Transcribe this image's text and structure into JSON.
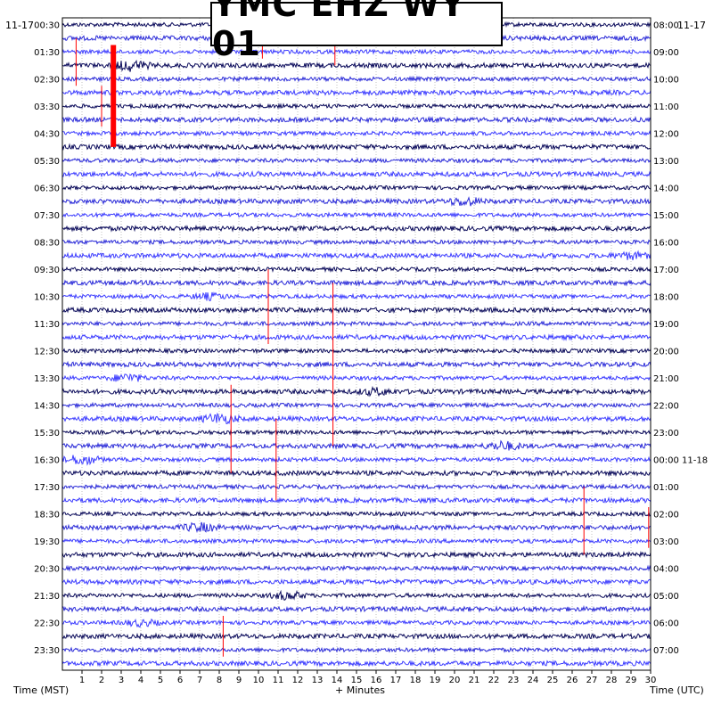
{
  "chart_data": {
    "type": "line",
    "title": "YMC EHZ WY 01",
    "date_left": "11-17",
    "date_right": "11-17",
    "xlabel": "+ Minutes",
    "ylabel_left": "Time (MST)",
    "ylabel_right": "Time (UTC)",
    "xlim": [
      0,
      30
    ],
    "x_ticks": [
      "1",
      "2",
      "3",
      "4",
      "5",
      "6",
      "7",
      "8",
      "9",
      "10",
      "11",
      "12",
      "13",
      "14",
      "15",
      "16",
      "17",
      "18",
      "19",
      "20",
      "21",
      "22",
      "23",
      "24",
      "25",
      "26",
      "27",
      "28",
      "29",
      "30"
    ],
    "left_labels": [
      "00:30",
      "01:30",
      "02:30",
      "03:30",
      "04:30",
      "05:30",
      "06:30",
      "07:30",
      "08:30",
      "09:30",
      "10:30",
      "11:30",
      "12:30",
      "13:30",
      "14:30",
      "15:30",
      "16:30",
      "17:30",
      "18:30",
      "19:30",
      "20:30",
      "21:30",
      "22:30",
      "23:30"
    ],
    "right_labels": [
      "08:00",
      "09:00",
      "10:00",
      "11:00",
      "12:00",
      "13:00",
      "14:00",
      "15:00",
      "16:00",
      "17:00",
      "18:00",
      "19:00",
      "20:00",
      "21:00",
      "22:00",
      "23:00",
      "00:00 11-18",
      "01:00",
      "02:00",
      "03:00",
      "04:00",
      "05:00",
      "06:00",
      "07:00"
    ],
    "trace_count": 48,
    "colors": {
      "navy": "#0a0a5a",
      "blue": "#2a2ad8",
      "bright": "#3c3cff",
      "event": "#ff0000"
    },
    "red_events": [
      {
        "minute": 2.6,
        "from": 2.0,
        "to": 9.5,
        "bold": true
      },
      {
        "minute": 0.7,
        "from": 1.5,
        "to": 5.0
      },
      {
        "minute": 2.0,
        "from": 5.0,
        "to": 8.0
      },
      {
        "minute": 10.2,
        "from": 0.3,
        "to": 3.0
      },
      {
        "minute": 10.5,
        "from": 18.5,
        "to": 24.0
      },
      {
        "minute": 13.9,
        "from": 1.0,
        "to": 3.5
      },
      {
        "minute": 13.8,
        "from": 19.5,
        "to": 31.5
      },
      {
        "minute": 8.6,
        "from": 27.0,
        "to": 33.5
      },
      {
        "minute": 10.9,
        "from": 29.5,
        "to": 35.5
      },
      {
        "minute": 26.6,
        "from": 34.5,
        "to": 39.5
      },
      {
        "minute": 8.2,
        "from": 44.0,
        "to": 47.0
      },
      {
        "minute": 29.9,
        "from": 36.0,
        "to": 39.0
      }
    ],
    "noise_bursts": [
      {
        "trace": 3,
        "minute": 3.5,
        "amp": 5
      },
      {
        "trace": 13,
        "minute": 20.5,
        "amp": 4
      },
      {
        "trace": 27,
        "minute": 16.0,
        "amp": 3
      },
      {
        "trace": 26,
        "minute": 3.3,
        "amp": 4
      },
      {
        "trace": 29,
        "minute": 8.0,
        "amp": 5
      },
      {
        "trace": 31,
        "minute": 22.5,
        "amp": 4
      },
      {
        "trace": 32,
        "minute": 1.0,
        "amp": 5
      },
      {
        "trace": 37,
        "minute": 7.0,
        "amp": 4
      },
      {
        "trace": 42,
        "minute": 11.5,
        "amp": 4
      },
      {
        "trace": 44,
        "minute": 4.0,
        "amp": 3
      },
      {
        "trace": 17,
        "minute": 29.0,
        "amp": 3
      },
      {
        "trace": 20,
        "minute": 7.5,
        "amp": 3
      }
    ]
  }
}
